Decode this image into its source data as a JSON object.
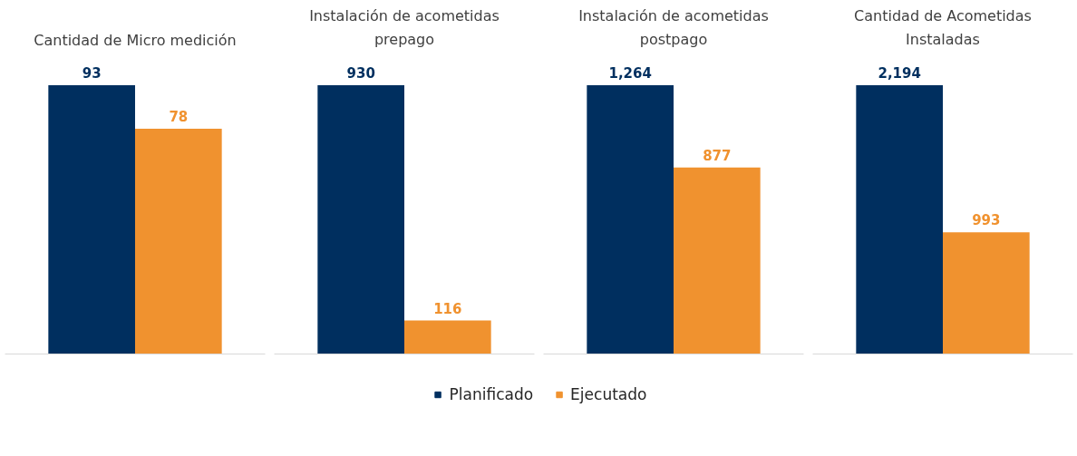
{
  "chart_data": [
    {
      "type": "bar",
      "title": "Cantidad de Micro medición",
      "categories": [
        null
      ],
      "tick_labels": false,
      "data_labels": true,
      "grid": false,
      "series": [
        {
          "color": "#002f5f",
          "values": [
            93
          ]
        },
        {
          "color": "#f0922f",
          "values": [
            78
          ]
        }
      ]
    },
    {
      "type": "bar",
      "title": "Instalación de acometidas prepago",
      "categories": [
        null
      ],
      "tick_labels": false,
      "data_labels": true,
      "grid": false,
      "series": [
        {
          "color": "#002f5f",
          "values": [
            930
          ]
        },
        {
          "color": "#f0922f",
          "values": [
            116
          ]
        }
      ]
    },
    {
      "type": "bar",
      "title": "Instalación de acometidas postpago",
      "categories": [
        null
      ],
      "tick_labels": false,
      "grid": false,
      "series": [
        {
          "color": "#002f5f",
          "values": [
            1264
          ],
          "value_labels": [
            "1,264"
          ]
        },
        {
          "color": "#f0922f",
          "values": [
            877
          ],
          "value_labels": [
            "877"
          ]
        }
      ]
    },
    {
      "type": "bar",
      "title": "Cantidad de Acometidas Instaladas",
      "categories": [
        null
      ],
      "tick_labels": false,
      "grid": false,
      "legend": "bottom",
      "series": [
        {
          "name": "Planificado",
          "color": "#002f5f",
          "values": [
            2194
          ],
          "value_labels": [
            "2,194"
          ]
        },
        {
          "name": "Ejecutado",
          "color": "#f0922f",
          "values": [
            993
          ],
          "value_labels": [
            "993"
          ]
        }
      ]
    }
  ]
}
